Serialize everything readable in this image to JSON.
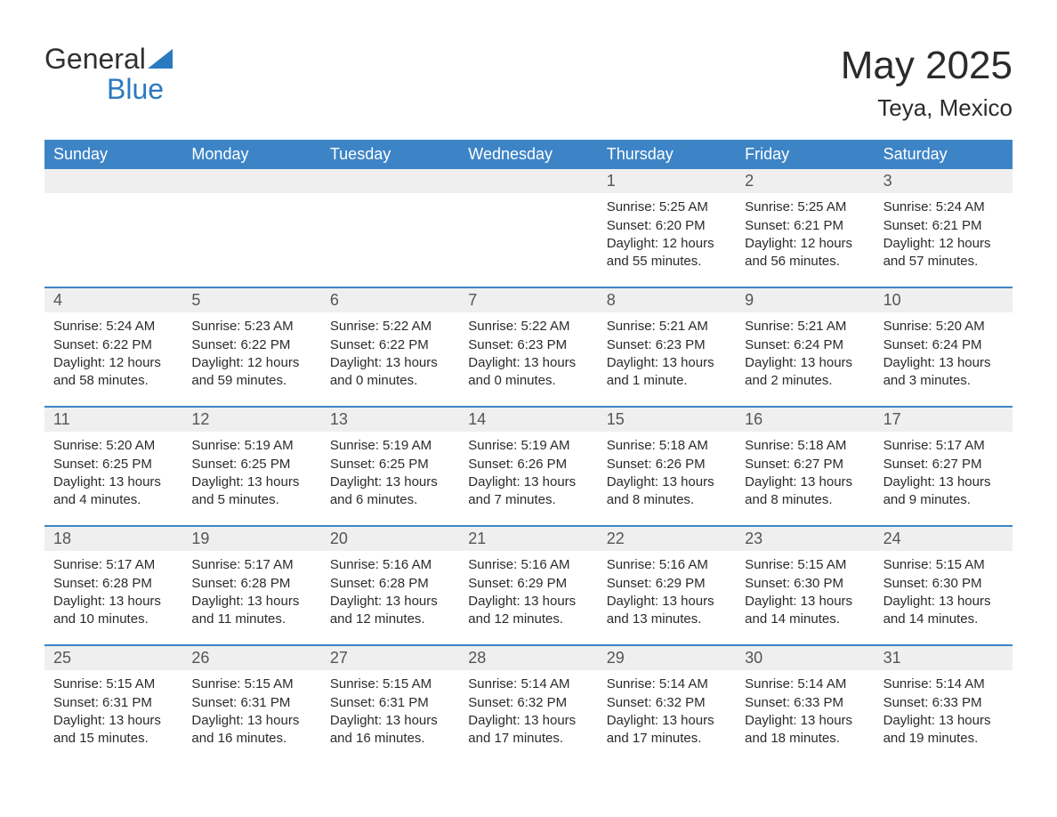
{
  "brand": {
    "part1": "General",
    "part2": "Blue"
  },
  "title": "May 2025",
  "location": "Teya, Mexico",
  "colors": {
    "header_bg": "#3d84c6",
    "header_text": "#ffffff",
    "row_divider": "#3d84c6",
    "daynum_bg": "#efefef",
    "page_bg": "#ffffff",
    "text": "#2b2b2b",
    "logo_blue": "#2a7ac0"
  },
  "day_headers": [
    "Sunday",
    "Monday",
    "Tuesday",
    "Wednesday",
    "Thursday",
    "Friday",
    "Saturday"
  ],
  "weeks": [
    [
      {
        "n": "",
        "sr": "",
        "ss": "",
        "dl": ""
      },
      {
        "n": "",
        "sr": "",
        "ss": "",
        "dl": ""
      },
      {
        "n": "",
        "sr": "",
        "ss": "",
        "dl": ""
      },
      {
        "n": "",
        "sr": "",
        "ss": "",
        "dl": ""
      },
      {
        "n": "1",
        "sr": "Sunrise: 5:25 AM",
        "ss": "Sunset: 6:20 PM",
        "dl": "Daylight: 12 hours and 55 minutes."
      },
      {
        "n": "2",
        "sr": "Sunrise: 5:25 AM",
        "ss": "Sunset: 6:21 PM",
        "dl": "Daylight: 12 hours and 56 minutes."
      },
      {
        "n": "3",
        "sr": "Sunrise: 5:24 AM",
        "ss": "Sunset: 6:21 PM",
        "dl": "Daylight: 12 hours and 57 minutes."
      }
    ],
    [
      {
        "n": "4",
        "sr": "Sunrise: 5:24 AM",
        "ss": "Sunset: 6:22 PM",
        "dl": "Daylight: 12 hours and 58 minutes."
      },
      {
        "n": "5",
        "sr": "Sunrise: 5:23 AM",
        "ss": "Sunset: 6:22 PM",
        "dl": "Daylight: 12 hours and 59 minutes."
      },
      {
        "n": "6",
        "sr": "Sunrise: 5:22 AM",
        "ss": "Sunset: 6:22 PM",
        "dl": "Daylight: 13 hours and 0 minutes."
      },
      {
        "n": "7",
        "sr": "Sunrise: 5:22 AM",
        "ss": "Sunset: 6:23 PM",
        "dl": "Daylight: 13 hours and 0 minutes."
      },
      {
        "n": "8",
        "sr": "Sunrise: 5:21 AM",
        "ss": "Sunset: 6:23 PM",
        "dl": "Daylight: 13 hours and 1 minute."
      },
      {
        "n": "9",
        "sr": "Sunrise: 5:21 AM",
        "ss": "Sunset: 6:24 PM",
        "dl": "Daylight: 13 hours and 2 minutes."
      },
      {
        "n": "10",
        "sr": "Sunrise: 5:20 AM",
        "ss": "Sunset: 6:24 PM",
        "dl": "Daylight: 13 hours and 3 minutes."
      }
    ],
    [
      {
        "n": "11",
        "sr": "Sunrise: 5:20 AM",
        "ss": "Sunset: 6:25 PM",
        "dl": "Daylight: 13 hours and 4 minutes."
      },
      {
        "n": "12",
        "sr": "Sunrise: 5:19 AM",
        "ss": "Sunset: 6:25 PM",
        "dl": "Daylight: 13 hours and 5 minutes."
      },
      {
        "n": "13",
        "sr": "Sunrise: 5:19 AM",
        "ss": "Sunset: 6:25 PM",
        "dl": "Daylight: 13 hours and 6 minutes."
      },
      {
        "n": "14",
        "sr": "Sunrise: 5:19 AM",
        "ss": "Sunset: 6:26 PM",
        "dl": "Daylight: 13 hours and 7 minutes."
      },
      {
        "n": "15",
        "sr": "Sunrise: 5:18 AM",
        "ss": "Sunset: 6:26 PM",
        "dl": "Daylight: 13 hours and 8 minutes."
      },
      {
        "n": "16",
        "sr": "Sunrise: 5:18 AM",
        "ss": "Sunset: 6:27 PM",
        "dl": "Daylight: 13 hours and 8 minutes."
      },
      {
        "n": "17",
        "sr": "Sunrise: 5:17 AM",
        "ss": "Sunset: 6:27 PM",
        "dl": "Daylight: 13 hours and 9 minutes."
      }
    ],
    [
      {
        "n": "18",
        "sr": "Sunrise: 5:17 AM",
        "ss": "Sunset: 6:28 PM",
        "dl": "Daylight: 13 hours and 10 minutes."
      },
      {
        "n": "19",
        "sr": "Sunrise: 5:17 AM",
        "ss": "Sunset: 6:28 PM",
        "dl": "Daylight: 13 hours and 11 minutes."
      },
      {
        "n": "20",
        "sr": "Sunrise: 5:16 AM",
        "ss": "Sunset: 6:28 PM",
        "dl": "Daylight: 13 hours and 12 minutes."
      },
      {
        "n": "21",
        "sr": "Sunrise: 5:16 AM",
        "ss": "Sunset: 6:29 PM",
        "dl": "Daylight: 13 hours and 12 minutes."
      },
      {
        "n": "22",
        "sr": "Sunrise: 5:16 AM",
        "ss": "Sunset: 6:29 PM",
        "dl": "Daylight: 13 hours and 13 minutes."
      },
      {
        "n": "23",
        "sr": "Sunrise: 5:15 AM",
        "ss": "Sunset: 6:30 PM",
        "dl": "Daylight: 13 hours and 14 minutes."
      },
      {
        "n": "24",
        "sr": "Sunrise: 5:15 AM",
        "ss": "Sunset: 6:30 PM",
        "dl": "Daylight: 13 hours and 14 minutes."
      }
    ],
    [
      {
        "n": "25",
        "sr": "Sunrise: 5:15 AM",
        "ss": "Sunset: 6:31 PM",
        "dl": "Daylight: 13 hours and 15 minutes."
      },
      {
        "n": "26",
        "sr": "Sunrise: 5:15 AM",
        "ss": "Sunset: 6:31 PM",
        "dl": "Daylight: 13 hours and 16 minutes."
      },
      {
        "n": "27",
        "sr": "Sunrise: 5:15 AM",
        "ss": "Sunset: 6:31 PM",
        "dl": "Daylight: 13 hours and 16 minutes."
      },
      {
        "n": "28",
        "sr": "Sunrise: 5:14 AM",
        "ss": "Sunset: 6:32 PM",
        "dl": "Daylight: 13 hours and 17 minutes."
      },
      {
        "n": "29",
        "sr": "Sunrise: 5:14 AM",
        "ss": "Sunset: 6:32 PM",
        "dl": "Daylight: 13 hours and 17 minutes."
      },
      {
        "n": "30",
        "sr": "Sunrise: 5:14 AM",
        "ss": "Sunset: 6:33 PM",
        "dl": "Daylight: 13 hours and 18 minutes."
      },
      {
        "n": "31",
        "sr": "Sunrise: 5:14 AM",
        "ss": "Sunset: 6:33 PM",
        "dl": "Daylight: 13 hours and 19 minutes."
      }
    ]
  ]
}
